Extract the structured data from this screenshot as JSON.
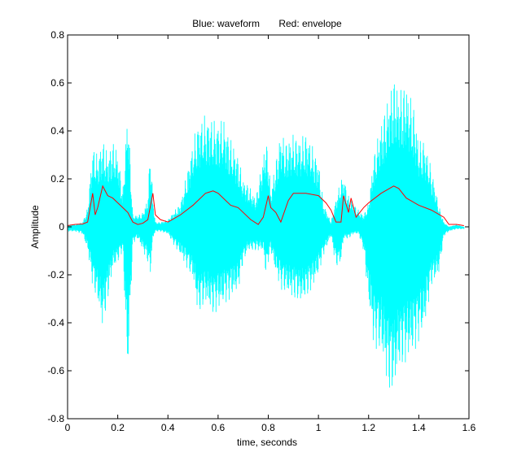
{
  "chart_data": {
    "type": "line",
    "title": "Blue: waveform       Red: envelope",
    "xlabel": "time, seconds",
    "ylabel": "Amplitude",
    "xlim": [
      0,
      1.6
    ],
    "ylim": [
      -0.8,
      0.8
    ],
    "grid": false,
    "legend": "none",
    "xticks": [
      "0",
      "0.2",
      "0.4",
      "0.6",
      "0.8",
      "1",
      "1.2",
      "1.4",
      "1.6"
    ],
    "yticks": [
      "-0.8",
      "-0.6",
      "-0.4",
      "-0.2",
      "0",
      "0.2",
      "0.4",
      "0.6",
      "0.8"
    ],
    "colors": {
      "waveform": "#00ffff",
      "envelope": "#ff0000",
      "axes": "#000000",
      "background": "#ffffff"
    },
    "waveform_peak_envelope": {
      "t": [
        0.0,
        0.03,
        0.06,
        0.08,
        0.1,
        0.12,
        0.14,
        0.16,
        0.18,
        0.2,
        0.22,
        0.24,
        0.26,
        0.28,
        0.3,
        0.32,
        0.33,
        0.34,
        0.35,
        0.37,
        0.4,
        0.42,
        0.45,
        0.48,
        0.5,
        0.52,
        0.55,
        0.58,
        0.6,
        0.62,
        0.65,
        0.68,
        0.7,
        0.72,
        0.75,
        0.78,
        0.79,
        0.8,
        0.81,
        0.83,
        0.85,
        0.87,
        0.9,
        0.93,
        0.95,
        0.98,
        1.0,
        1.02,
        1.05,
        1.07,
        1.09,
        1.1,
        1.12,
        1.14,
        1.16,
        1.18,
        1.2,
        1.22,
        1.25,
        1.28,
        1.3,
        1.32,
        1.35,
        1.38,
        1.4,
        1.42,
        1.45,
        1.48,
        1.5,
        1.52,
        1.55,
        1.58
      ],
      "max": [
        0.01,
        0.01,
        0.02,
        0.08,
        0.34,
        0.3,
        0.37,
        0.31,
        0.36,
        0.32,
        0.15,
        0.52,
        0.05,
        0.05,
        0.06,
        0.12,
        0.35,
        0.12,
        0.02,
        0.02,
        0.03,
        0.06,
        0.1,
        0.25,
        0.36,
        0.44,
        0.47,
        0.45,
        0.44,
        0.46,
        0.37,
        0.3,
        0.2,
        0.18,
        0.12,
        0.3,
        0.37,
        0.32,
        0.15,
        0.28,
        0.4,
        0.36,
        0.39,
        0.37,
        0.4,
        0.33,
        0.28,
        0.1,
        0.02,
        0.12,
        0.2,
        0.22,
        0.13,
        0.1,
        0.07,
        0.05,
        0.1,
        0.3,
        0.44,
        0.55,
        0.63,
        0.58,
        0.6,
        0.51,
        0.36,
        0.37,
        0.25,
        0.09,
        0.02,
        0.0,
        0.01,
        0.0
      ],
      "min": [
        -0.02,
        -0.02,
        -0.03,
        -0.1,
        -0.25,
        -0.32,
        -0.43,
        -0.31,
        -0.18,
        -0.15,
        -0.1,
        -0.65,
        -0.07,
        -0.05,
        -0.1,
        -0.15,
        -0.2,
        -0.05,
        -0.02,
        -0.02,
        -0.03,
        -0.07,
        -0.12,
        -0.18,
        -0.22,
        -0.37,
        -0.32,
        -0.37,
        -0.35,
        -0.33,
        -0.3,
        -0.27,
        -0.15,
        -0.1,
        -0.1,
        -0.1,
        -0.2,
        -0.15,
        -0.1,
        -0.2,
        -0.26,
        -0.28,
        -0.3,
        -0.32,
        -0.3,
        -0.25,
        -0.2,
        -0.12,
        -0.04,
        -0.17,
        -0.15,
        -0.05,
        -0.05,
        -0.03,
        -0.03,
        -0.1,
        -0.32,
        -0.5,
        -0.53,
        -0.69,
        -0.7,
        -0.6,
        -0.57,
        -0.53,
        -0.48,
        -0.44,
        -0.25,
        -0.2,
        -0.04,
        -0.02,
        -0.01,
        -0.01
      ]
    },
    "envelope": {
      "t": [
        0.0,
        0.03,
        0.06,
        0.08,
        0.1,
        0.11,
        0.12,
        0.14,
        0.16,
        0.18,
        0.2,
        0.22,
        0.24,
        0.26,
        0.28,
        0.3,
        0.32,
        0.34,
        0.35,
        0.37,
        0.4,
        0.45,
        0.5,
        0.55,
        0.58,
        0.6,
        0.65,
        0.68,
        0.7,
        0.73,
        0.76,
        0.78,
        0.8,
        0.81,
        0.83,
        0.85,
        0.88,
        0.9,
        0.95,
        1.0,
        1.03,
        1.05,
        1.07,
        1.09,
        1.1,
        1.12,
        1.13,
        1.15,
        1.18,
        1.2,
        1.25,
        1.3,
        1.32,
        1.35,
        1.4,
        1.45,
        1.5,
        1.52,
        1.55,
        1.58
      ],
      "values": [
        0.005,
        0.01,
        0.012,
        0.02,
        0.14,
        0.05,
        0.08,
        0.17,
        0.13,
        0.12,
        0.1,
        0.08,
        0.06,
        0.02,
        0.01,
        0.015,
        0.03,
        0.14,
        0.05,
        0.03,
        0.02,
        0.05,
        0.09,
        0.14,
        0.15,
        0.14,
        0.09,
        0.08,
        0.06,
        0.03,
        0.01,
        0.04,
        0.13,
        0.08,
        0.06,
        0.02,
        0.11,
        0.14,
        0.14,
        0.13,
        0.1,
        0.07,
        0.02,
        0.02,
        0.13,
        0.06,
        0.12,
        0.04,
        0.08,
        0.1,
        0.14,
        0.17,
        0.16,
        0.12,
        0.09,
        0.07,
        0.04,
        0.01,
        0.01,
        0.005
      ]
    }
  }
}
